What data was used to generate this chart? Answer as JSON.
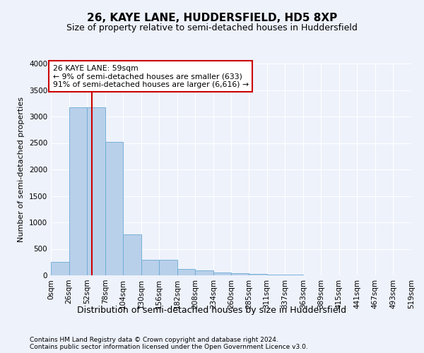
{
  "title": "26, KAYE LANE, HUDDERSFIELD, HD5 8XP",
  "subtitle": "Size of property relative to semi-detached houses in Huddersfield",
  "xlabel_bottom": "Distribution of semi-detached houses by size in Huddersfield",
  "ylabel": "Number of semi-detached properties",
  "footer_line1": "Contains HM Land Registry data © Crown copyright and database right 2024.",
  "footer_line2": "Contains public sector information licensed under the Open Government Licence v3.0.",
  "property_size": 59,
  "property_label": "26 KAYE LANE: 59sqm",
  "annotation_smaller": "← 9% of semi-detached houses are smaller (633)",
  "annotation_larger": "91% of semi-detached houses are larger (6,616) →",
  "bar_color": "#b8d0ea",
  "bar_edge_color": "#6aaad4",
  "vline_color": "#cc0000",
  "annotation_box_edge": "#cc0000",
  "background_color": "#eef2fb",
  "grid_color": "#ffffff",
  "bin_edges": [
    0,
    26,
    52,
    78,
    104,
    130,
    156,
    182,
    208,
    234,
    260,
    285,
    311,
    337,
    363,
    389,
    415,
    441,
    467,
    493,
    519
  ],
  "bar_heights": [
    250,
    3175,
    3175,
    2525,
    775,
    295,
    295,
    120,
    90,
    55,
    45,
    30,
    20,
    10,
    5,
    5,
    3,
    3,
    2,
    2
  ],
  "ylim": [
    0,
    4000
  ],
  "yticks": [
    0,
    500,
    1000,
    1500,
    2000,
    2500,
    3000,
    3500,
    4000
  ],
  "tick_labels": [
    "0sqm",
    "26sqm",
    "52sqm",
    "78sqm",
    "104sqm",
    "130sqm",
    "156sqm",
    "182sqm",
    "208sqm",
    "234sqm",
    "260sqm",
    "285sqm",
    "311sqm",
    "337sqm",
    "363sqm",
    "389sqm",
    "415sqm",
    "441sqm",
    "467sqm",
    "493sqm",
    "519sqm"
  ],
  "title_fontsize": 11,
  "subtitle_fontsize": 9,
  "ylabel_fontsize": 8,
  "tick_fontsize": 7.5,
  "footer_fontsize": 6.5
}
